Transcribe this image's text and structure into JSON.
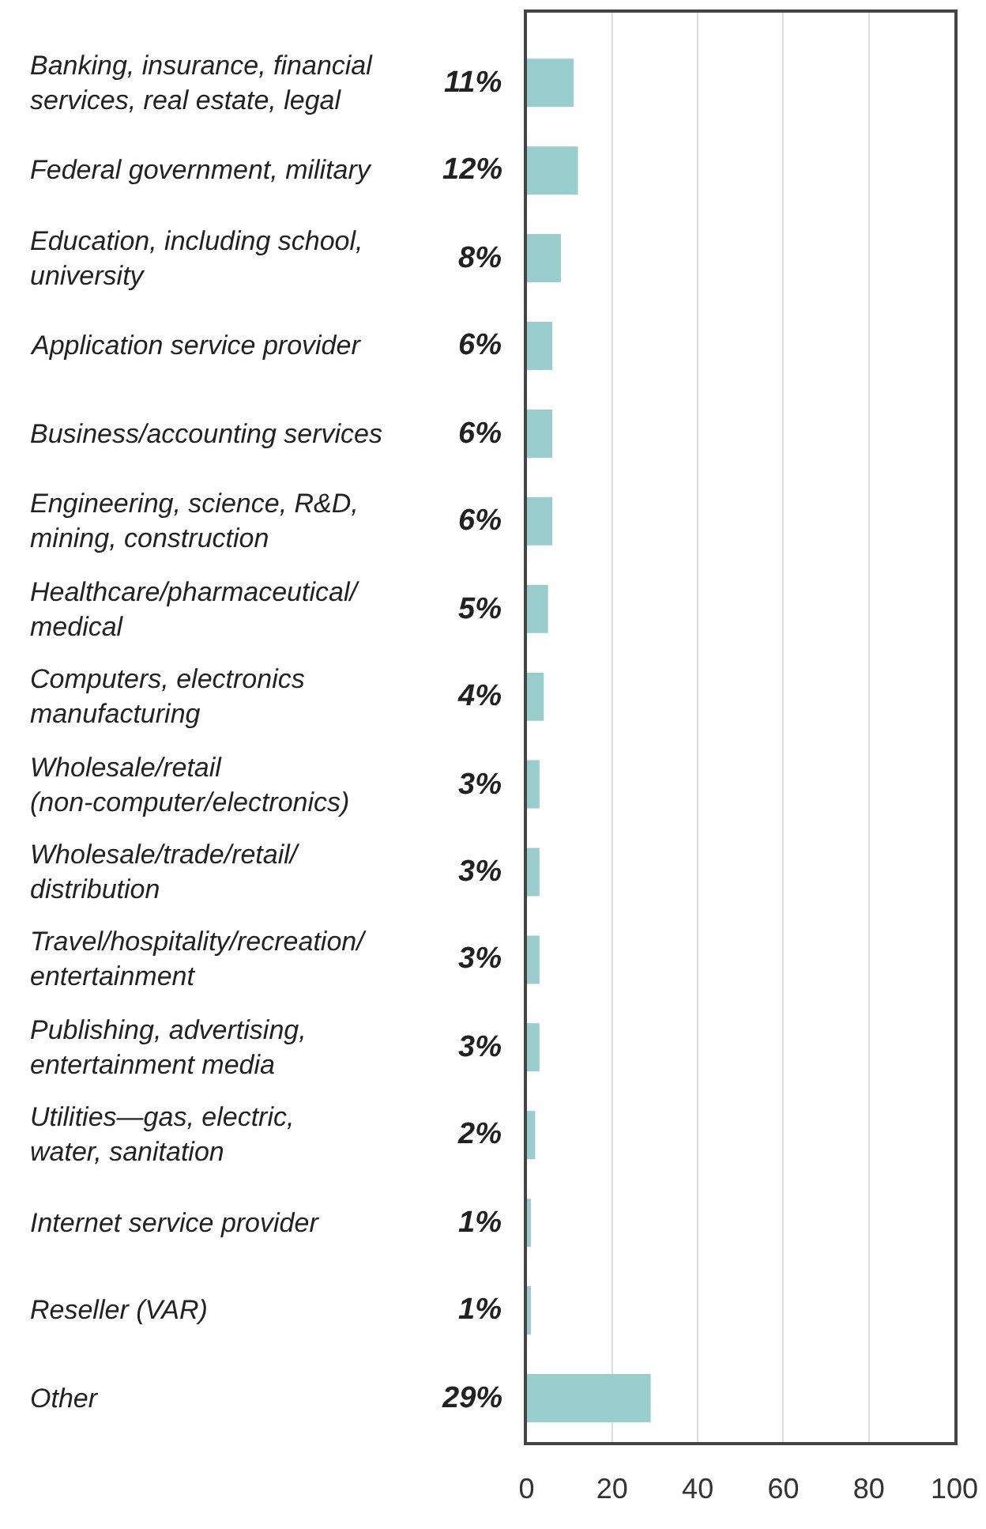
{
  "chart_data": {
    "type": "bar",
    "orientation": "horizontal",
    "categories": [
      "Banking, insurance, financial\nservices, real estate, legal",
      "Federal government, military",
      "Education, including school,\nuniversity",
      "Application service provider",
      "Business/accounting services",
      "Engineering, science, R&D,\nmining, construction",
      "Healthcare/pharmaceutical/\nmedical",
      "Computers, electronics\nmanufacturing",
      "Wholesale/retail\n(non-computer/electronics)",
      "Wholesale/trade/retail/\ndistribution",
      "Travel/hospitality/recreation/\nentertainment",
      "Publishing, advertising,\nentertainment media",
      "Utilities—gas, electric,\nwater, sanitation",
      "Internet service provider",
      "Reseller (VAR)",
      "Other"
    ],
    "values": [
      11,
      12,
      8,
      6,
      6,
      6,
      5,
      4,
      3,
      3,
      3,
      3,
      2,
      1,
      1,
      29
    ],
    "value_labels": [
      "11%",
      "12%",
      "8%",
      "6%",
      "6%",
      "6%",
      "5%",
      "4%",
      "3%",
      "3%",
      "3%",
      "3%",
      "2%",
      "1%",
      "1%",
      "29%"
    ],
    "color": "#99cecc",
    "xlim": [
      0,
      100
    ],
    "xticks": [
      0,
      20,
      40,
      60,
      80,
      100
    ],
    "grid": "x"
  }
}
